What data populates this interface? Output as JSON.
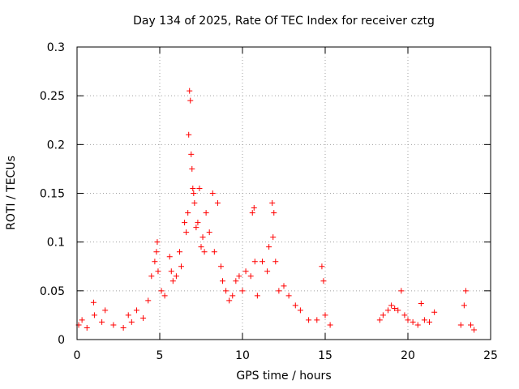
{
  "chart_data": {
    "type": "scatter",
    "title": "Day 134 of 2025, Rate Of TEC Index for receiver cztg",
    "xlabel": "GPS time / hours",
    "ylabel": "ROTI / TECUs",
    "xlim": [
      0,
      25
    ],
    "ylim": [
      0,
      0.3
    ],
    "xticks": [
      0,
      5,
      10,
      15,
      20,
      25
    ],
    "yticks": [
      0,
      0.05,
      0.1,
      0.15,
      0.2,
      0.25,
      0.3
    ],
    "grid": true,
    "marker": "plus",
    "color": "#ff0000",
    "series": [
      {
        "x": [
          0.1,
          0.3,
          0.6,
          1.0,
          1.05,
          1.5,
          1.7,
          2.2,
          2.8,
          3.1,
          3.3,
          3.6,
          4.0,
          4.3,
          4.5,
          4.7,
          4.8,
          4.85,
          4.9,
          5.1,
          5.3,
          5.6,
          5.7,
          5.8,
          6.0,
          6.2,
          6.3,
          6.5,
          6.6,
          6.7,
          6.75,
          6.8,
          6.85,
          6.9,
          6.95,
          7.0,
          7.05,
          7.1,
          7.2,
          7.3,
          7.4,
          7.5,
          7.6,
          7.7,
          7.8,
          8.0,
          8.2,
          8.3,
          8.5,
          8.7,
          8.8,
          9.0,
          9.2,
          9.4,
          9.6,
          9.8,
          10.0,
          10.2,
          10.5,
          10.6,
          10.7,
          10.75,
          10.9,
          11.2,
          11.5,
          11.6,
          11.8,
          11.85,
          11.9,
          12.0,
          12.2,
          12.5,
          12.8,
          13.2,
          13.5,
          14.0,
          14.5,
          14.8,
          14.9,
          15.0,
          15.3,
          18.3,
          18.5,
          18.8,
          19.0,
          19.2,
          19.4,
          19.6,
          19.8,
          20.0,
          20.3,
          20.6,
          20.8,
          21.0,
          21.3,
          21.6,
          23.2,
          23.4,
          23.5,
          23.8,
          24.0
        ],
        "y": [
          0.015,
          0.02,
          0.012,
          0.038,
          0.025,
          0.018,
          0.03,
          0.015,
          0.012,
          0.025,
          0.018,
          0.03,
          0.022,
          0.04,
          0.065,
          0.08,
          0.09,
          0.1,
          0.07,
          0.05,
          0.045,
          0.085,
          0.07,
          0.06,
          0.065,
          0.09,
          0.075,
          0.12,
          0.11,
          0.13,
          0.21,
          0.255,
          0.245,
          0.19,
          0.175,
          0.155,
          0.15,
          0.14,
          0.115,
          0.12,
          0.155,
          0.095,
          0.105,
          0.09,
          0.13,
          0.11,
          0.15,
          0.09,
          0.14,
          0.075,
          0.06,
          0.05,
          0.04,
          0.045,
          0.06,
          0.065,
          0.05,
          0.07,
          0.065,
          0.13,
          0.135,
          0.08,
          0.045,
          0.08,
          0.07,
          0.095,
          0.14,
          0.105,
          0.13,
          0.08,
          0.05,
          0.055,
          0.045,
          0.035,
          0.03,
          0.02,
          0.02,
          0.075,
          0.06,
          0.025,
          0.015,
          0.02,
          0.025,
          0.03,
          0.035,
          0.032,
          0.03,
          0.05,
          0.025,
          0.02,
          0.018,
          0.015,
          0.037,
          0.02,
          0.018,
          0.028,
          0.015,
          0.035,
          0.05,
          0.015,
          0.01
        ]
      }
    ]
  }
}
